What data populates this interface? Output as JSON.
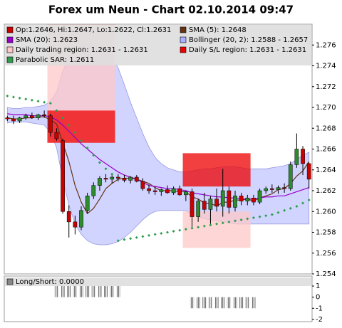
{
  "chart_data": [
    {
      "type": "candlestick",
      "title": "Forex um Neun - Chart 02.10.2014 09:47",
      "ylim": [
        1.254,
        1.278
      ],
      "yticks": [
        1.254,
        1.256,
        1.258,
        {
          "value": 1.26,
          "label": "1.260"
        },
        1.262,
        1.264,
        1.266,
        1.268,
        {
          "value": 1.27,
          "label": "1.270"
        },
        1.272,
        1.274,
        1.276
      ],
      "grid": false,
      "series": [
        {
          "name": "Op:1.2646, Hi:1.2647, Lo:1.2622, Cl:1.2631",
          "kind": "ohlc",
          "color": "#cc0000",
          "up_color": "#2e8b2e",
          "down_color": "#cc0000",
          "open": [
            1.269,
            1.2689,
            1.2687,
            1.269,
            1.2692,
            1.269,
            1.2693,
            1.2692,
            1.2676,
            1.2668,
            1.26,
            1.259,
            1.2585,
            1.2601,
            1.2615,
            1.2625,
            1.2632,
            1.2631,
            1.2633,
            1.2632,
            1.263,
            1.2633,
            1.2629,
            1.2622,
            1.262,
            1.2619,
            1.2621,
            1.2618,
            1.2622,
            1.2616,
            1.2619,
            1.2595,
            1.261,
            1.2602,
            1.2612,
            1.2605,
            1.262,
            1.2604,
            1.2615,
            1.261,
            1.2613,
            1.2609,
            1.262,
            1.2622,
            1.2621,
            1.2623,
            1.2622,
            1.2645,
            1.266,
            1.2646
          ],
          "high": [
            1.2692,
            1.2692,
            1.2691,
            1.2694,
            1.2695,
            1.2694,
            1.2697,
            1.2694,
            1.268,
            1.267,
            1.2606,
            1.2596,
            1.2605,
            1.2618,
            1.2628,
            1.2634,
            1.2636,
            1.2635,
            1.2636,
            1.2635,
            1.2634,
            1.2635,
            1.2632,
            1.2626,
            1.2624,
            1.2622,
            1.2625,
            1.2624,
            1.2625,
            1.262,
            1.2622,
            1.2612,
            1.2618,
            1.2615,
            1.2622,
            1.2641,
            1.2624,
            1.262,
            1.2618,
            1.2616,
            1.2616,
            1.2622,
            1.2624,
            1.2626,
            1.2625,
            1.2627,
            1.2648,
            1.2675,
            1.2663,
            1.2647
          ],
          "low": [
            1.2687,
            1.2684,
            1.2685,
            1.2688,
            1.2689,
            1.2688,
            1.269,
            1.2672,
            1.2668,
            1.2598,
            1.2575,
            1.2578,
            1.2582,
            1.2598,
            1.2612,
            1.262,
            1.2628,
            1.2627,
            1.2629,
            1.2628,
            1.2627,
            1.2628,
            1.262,
            1.2617,
            1.2616,
            1.2615,
            1.2617,
            1.2616,
            1.2615,
            1.261,
            1.2585,
            1.259,
            1.2598,
            1.2588,
            1.26,
            1.2595,
            1.2598,
            1.26,
            1.2606,
            1.2606,
            1.2606,
            1.2607,
            1.2617,
            1.2618,
            1.2617,
            1.2618,
            1.262,
            1.2642,
            1.2635,
            1.2622
          ],
          "close": [
            1.2689,
            1.2687,
            1.269,
            1.2692,
            1.269,
            1.2693,
            1.2692,
            1.2676,
            1.267,
            1.26,
            1.259,
            1.2585,
            1.2601,
            1.2615,
            1.2625,
            1.2632,
            1.2631,
            1.2633,
            1.2632,
            1.263,
            1.2633,
            1.2629,
            1.2622,
            1.262,
            1.2619,
            1.2621,
            1.2618,
            1.2622,
            1.2616,
            1.2619,
            1.2595,
            1.261,
            1.2602,
            1.2612,
            1.2605,
            1.262,
            1.2604,
            1.2615,
            1.261,
            1.2613,
            1.2609,
            1.262,
            1.2622,
            1.2621,
            1.2623,
            1.2622,
            1.2645,
            1.266,
            1.2646,
            1.2631
          ]
        },
        {
          "name": "SMA (5): 1.2648",
          "kind": "line",
          "color": "#663311",
          "values": [
            1.269,
            1.2689,
            1.2689,
            1.269,
            1.269,
            1.2691,
            1.2691,
            1.2688,
            1.2684,
            1.2666,
            1.2648,
            1.2625,
            1.2609,
            1.2598,
            1.2603,
            1.2612,
            1.2622,
            1.2627,
            1.2631,
            1.2632,
            1.2632,
            1.2631,
            1.2629,
            1.2627,
            1.2623,
            1.262,
            1.262,
            1.262,
            1.2619,
            1.2619,
            1.2614,
            1.2612,
            1.2608,
            1.2608,
            1.2605,
            1.2609,
            1.2609,
            1.2611,
            1.2611,
            1.2612,
            1.261,
            1.2613,
            1.2615,
            1.2617,
            1.2621,
            1.2622,
            1.2627,
            1.2634,
            1.2639,
            1.2648
          ]
        },
        {
          "name": "SMA (20): 1.2623",
          "kind": "line",
          "color": "#9900cc",
          "values": [
            1.2694,
            1.2693,
            1.2693,
            1.2693,
            1.2692,
            1.2692,
            1.2692,
            1.2691,
            1.2688,
            1.2683,
            1.2677,
            1.2671,
            1.2665,
            1.266,
            1.2655,
            1.265,
            1.2646,
            1.2642,
            1.2638,
            1.2635,
            1.2633,
            1.2631,
            1.2628,
            1.2625,
            1.2624,
            1.2623,
            1.2622,
            1.2622,
            1.2621,
            1.262,
            1.2618,
            1.2617,
            1.2616,
            1.2615,
            1.2614,
            1.2614,
            1.2613,
            1.2613,
            1.2612,
            1.2612,
            1.2612,
            1.2613,
            1.2614,
            1.2614,
            1.2615,
            1.2615,
            1.2617,
            1.2619,
            1.2621,
            1.2623
          ]
        },
        {
          "name": "Bollinger (20, 2): 1.2588 - 1.2657",
          "kind": "band",
          "color": "#aab0ff",
          "upper": [
            1.27,
            1.2699,
            1.2699,
            1.27,
            1.27,
            1.2701,
            1.2702,
            1.2706,
            1.2715,
            1.2735,
            1.2748,
            1.2755,
            1.2759,
            1.2761,
            1.2762,
            1.276,
            1.2755,
            1.2748,
            1.2738,
            1.2722,
            1.2705,
            1.269,
            1.2675,
            1.2662,
            1.2652,
            1.2646,
            1.2642,
            1.264,
            1.2638,
            1.2638,
            1.2639,
            1.264,
            1.2641,
            1.2641,
            1.2642,
            1.2643,
            1.2643,
            1.2643,
            1.2642,
            1.2641,
            1.2641,
            1.2641,
            1.2641,
            1.2642,
            1.2643,
            1.2644,
            1.2646,
            1.265,
            1.2654,
            1.2657
          ],
          "lower": [
            1.2685,
            1.2686,
            1.2686,
            1.2686,
            1.2685,
            1.2684,
            1.2683,
            1.2676,
            1.2661,
            1.2631,
            1.2606,
            1.2588,
            1.2578,
            1.2572,
            1.2569,
            1.2568,
            1.2568,
            1.2569,
            1.2571,
            1.2575,
            1.258,
            1.2586,
            1.2592,
            1.2597,
            1.26,
            1.2601,
            1.2601,
            1.2601,
            1.2601,
            1.2601,
            1.2597,
            1.2595,
            1.2593,
            1.2592,
            1.2591,
            1.259,
            1.2589,
            1.2588,
            1.2588,
            1.2588,
            1.2588,
            1.2588,
            1.2588,
            1.2588,
            1.2588,
            1.2588,
            1.2588,
            1.2588,
            1.2588,
            1.2588
          ]
        },
        {
          "name": "Daily trading region: 1.2631 - 1.2631",
          "kind": "region",
          "color": "#ffc8c8",
          "regions": [
            {
              "start": 7,
              "end": 17,
              "low": 1.2666,
              "high": 1.278
            },
            {
              "start": 29,
              "end": 39,
              "low": 1.2565,
              "high": 1.26
            }
          ]
        },
        {
          "name": "Daily S/L region: 1.2631 - 1.2631",
          "kind": "region",
          "color": "#ee0000",
          "regions": [
            {
              "start": 7,
              "end": 17,
              "low": 1.2666,
              "high": 1.2697
            },
            {
              "start": 29,
              "end": 39,
              "low": 1.2624,
              "high": 1.2656
            }
          ]
        },
        {
          "name": "Parabolic SAR: 1.2611",
          "kind": "dots",
          "color": "#2e9e4e",
          "values": [
            1.2711,
            1.271,
            1.2709,
            1.2708,
            1.2707,
            1.2706,
            1.2705,
            1.2704,
            1.2697,
            1.269,
            1.2683,
            1.2676,
            1.2668,
            1.2661,
            1.2654,
            1.2647,
            1.2641,
            1.2636,
            1.2572,
            1.2573,
            1.2574,
            1.2575,
            1.2576,
            1.2577,
            1.2578,
            1.2579,
            1.258,
            1.2581,
            1.2582,
            1.2583,
            1.2584,
            1.2585,
            1.2586,
            1.2587,
            1.2588,
            1.2589,
            1.259,
            1.2591,
            1.2592,
            1.2593,
            1.2594,
            1.2595,
            1.2596,
            1.2597,
            1.2599,
            1.2601,
            1.2603,
            1.2605,
            1.2608,
            1.2611
          ]
        }
      ]
    },
    {
      "type": "bar",
      "ylim": [
        -2.2,
        1.9
      ],
      "yticks": [
        1,
        0,
        -1,
        -2
      ],
      "series": [
        {
          "name": "Long/Short: 0.0000",
          "color": "#888888",
          "values": [
            0,
            0,
            0,
            0,
            0,
            0,
            0,
            0,
            1,
            1,
            1,
            1,
            1,
            1,
            1,
            1,
            1,
            1,
            1,
            0,
            0,
            0,
            0,
            0,
            0,
            0,
            0,
            0,
            0,
            0,
            -1,
            -1,
            -1,
            -1,
            -1,
            -1,
            -1,
            -1,
            -1,
            -1,
            -1,
            0,
            0,
            0,
            0,
            0,
            0,
            0,
            0,
            0
          ]
        }
      ]
    }
  ]
}
